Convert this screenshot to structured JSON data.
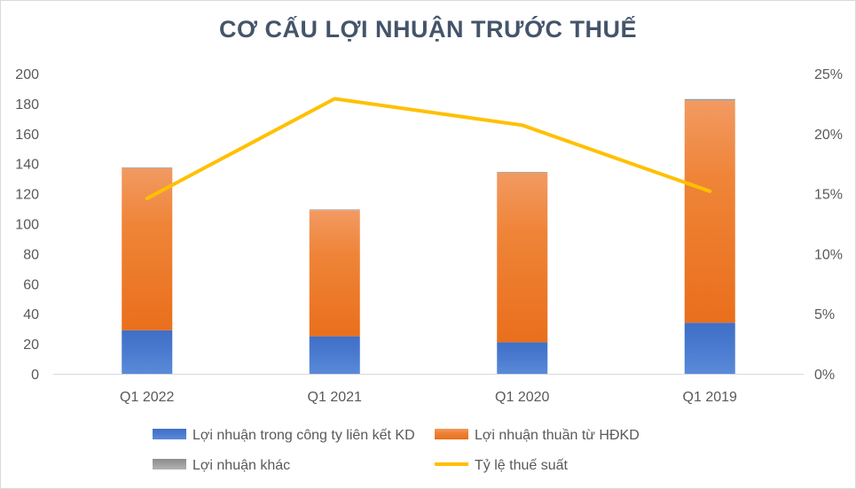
{
  "chart_data": {
    "type": "bar",
    "title": "CƠ CẤU LỢI NHUẬN TRƯỚC THUẾ",
    "categories": [
      "Q1 2022",
      "Q1 2021",
      "Q1 2020",
      "Q1 2019"
    ],
    "ylim": [
      0,
      200
    ],
    "yticks": [
      "0",
      "20",
      "40",
      "60",
      "80",
      "100",
      "120",
      "140",
      "160",
      "180",
      "200"
    ],
    "y2lim": [
      0,
      0.25
    ],
    "y2ticks": [
      "0%",
      "5%",
      "10%",
      "15%",
      "20%",
      "25%"
    ],
    "grid": false,
    "legend_position": "bottom",
    "series": [
      {
        "name": "Lợi nhuận trong công ty liên kết KD",
        "kind": "bar-stacked",
        "color": "#4472c4",
        "values": [
          29,
          25,
          21,
          34
        ]
      },
      {
        "name": "Lợi nhuận thuần từ HĐKD",
        "kind": "bar-stacked",
        "color": "#ed7d31",
        "values": [
          108,
          84,
          113,
          148
        ]
      },
      {
        "name": "Lợi nhuận khác",
        "kind": "bar-stacked",
        "color": "#a5a5a5",
        "values": [
          0.5,
          0.5,
          0.5,
          1
        ]
      },
      {
        "name": "Tỷ lệ thuế suất",
        "kind": "line",
        "axis": "secondary",
        "color": "#ffc000",
        "values": [
          0.146,
          0.229,
          0.207,
          0.152
        ]
      }
    ]
  }
}
